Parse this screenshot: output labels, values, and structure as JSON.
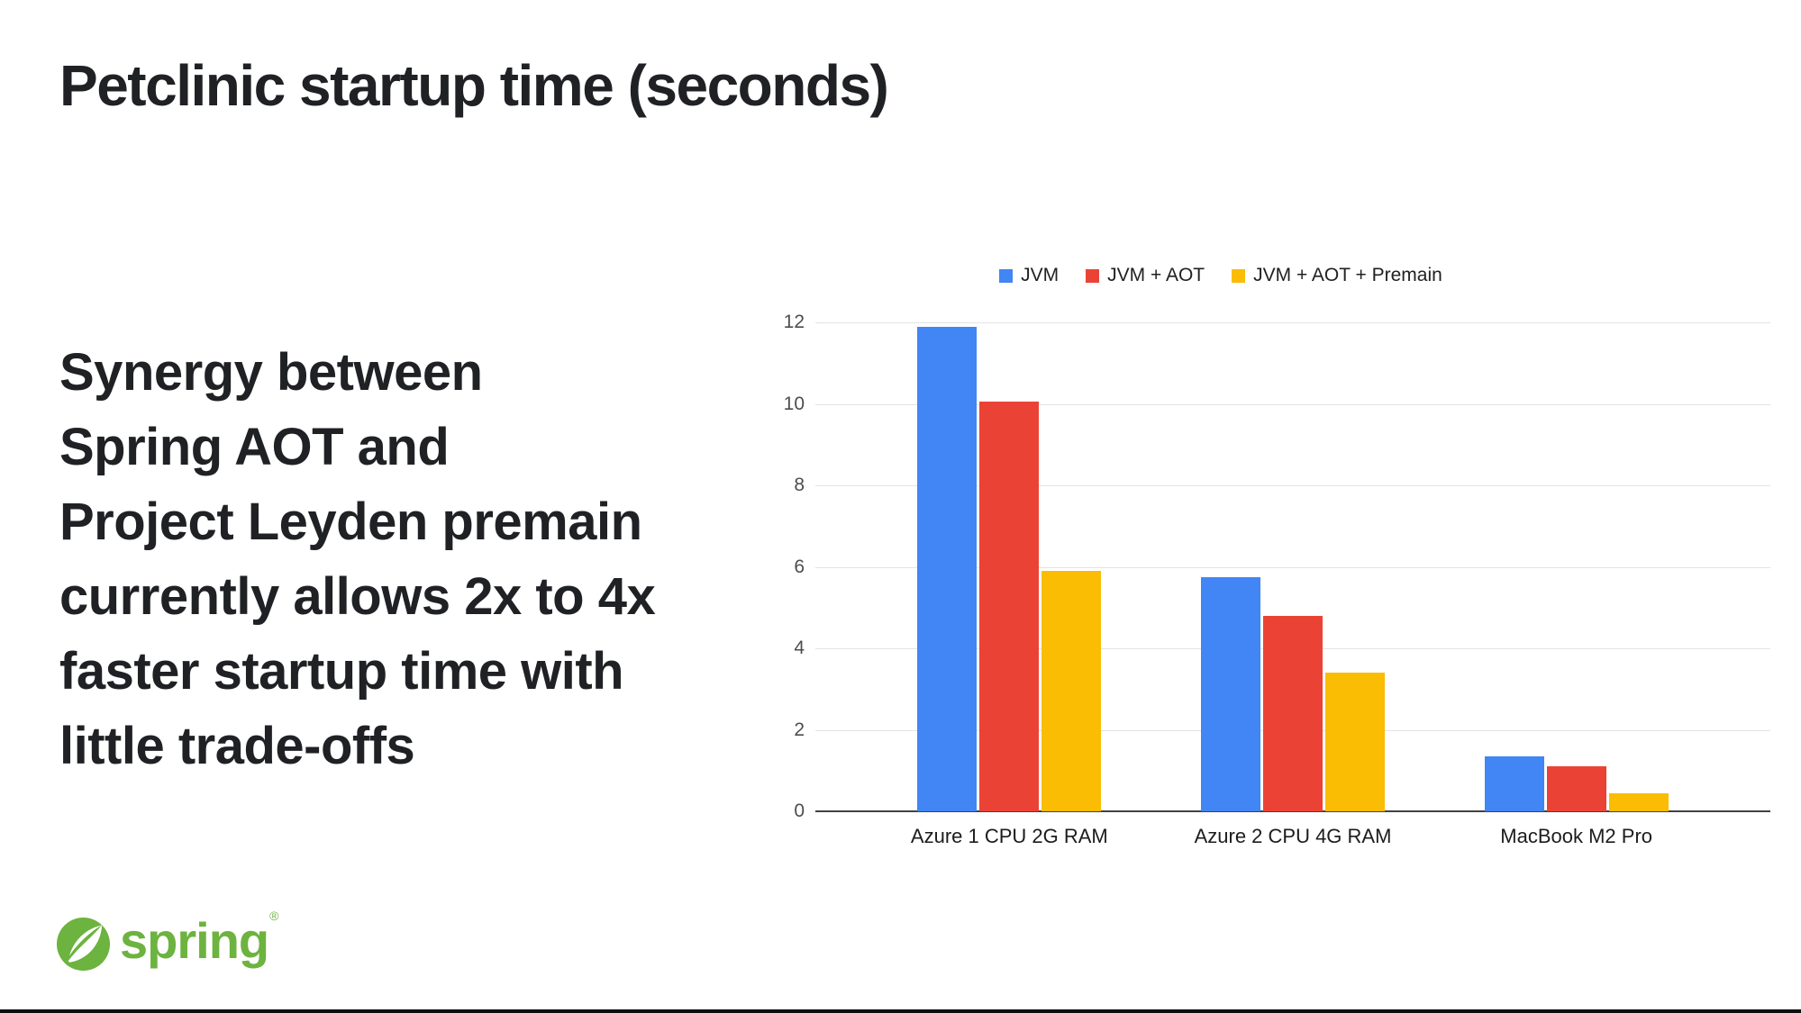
{
  "slide": {
    "title": "Petclinic startup time (seconds)",
    "message": "Synergy between\nSpring AOT and\nProject Leyden premain\ncurrently allows 2x to 4x\nfaster startup time with\nlittle trade-offs",
    "logo": {
      "text": "spring",
      "registered_mark": "®",
      "green": "#6DB33F"
    }
  },
  "chart_data": {
    "type": "bar",
    "title": "",
    "xlabel": "",
    "ylabel": "",
    "categories": [
      "Azure 1 CPU 2G RAM",
      "Azure 2 CPU 4G RAM",
      "MacBook M2 Pro"
    ],
    "series": [
      {
        "name": "JVM",
        "color": "#4285F4",
        "values": [
          11.9,
          5.75,
          1.35
        ]
      },
      {
        "name": "JVM + AOT",
        "color": "#EA4335",
        "values": [
          10.05,
          4.8,
          1.1
        ]
      },
      {
        "name": "JVM + AOT + Premain",
        "color": "#FBBC04",
        "values": [
          5.9,
          3.4,
          0.45
        ]
      }
    ],
    "ylim": [
      0,
      12
    ],
    "yticks": [
      0,
      2,
      4,
      6,
      8,
      10,
      12
    ],
    "grid": true,
    "legend_position": "top"
  }
}
